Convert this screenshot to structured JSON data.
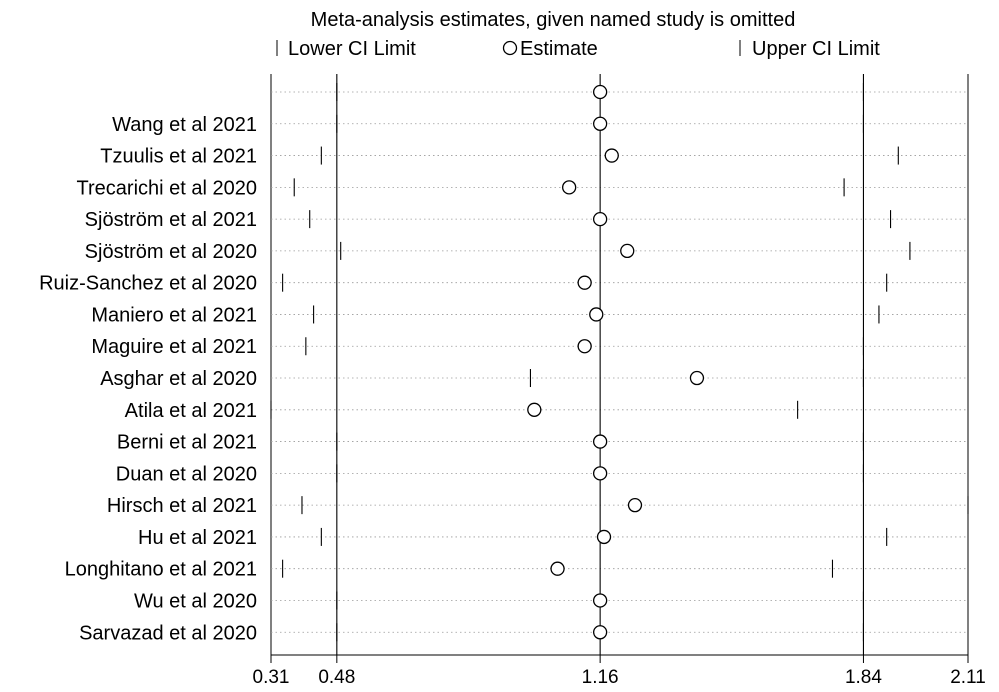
{
  "chart_data": {
    "type": "scatter",
    "title": "Meta-analysis estimates, given named study is omitted",
    "legend": {
      "placement": "top",
      "entries": [
        "Lower CI Limit",
        "Estimate",
        "Upper CI Limit"
      ]
    },
    "xlim": [
      0.31,
      2.11
    ],
    "xticks": [
      "0.31",
      "0.48",
      "1.16",
      "1.84",
      "2.11"
    ],
    "reference_lines": [
      0.48,
      1.16,
      1.84
    ],
    "grid": "dotted horizontal row guides",
    "studies": [
      {
        "label": "",
        "lower": 0.48,
        "estimate": 1.16,
        "upper": 1.84
      },
      {
        "label": "Wang et al 2021",
        "lower": 0.48,
        "estimate": 1.16,
        "upper": 1.84
      },
      {
        "label": "Tzuulis et al 2021",
        "lower": 0.44,
        "estimate": 1.19,
        "upper": 1.93
      },
      {
        "label": "Trecarichi et al 2020",
        "lower": 0.37,
        "estimate": 1.08,
        "upper": 1.79
      },
      {
        "label": "Sjöström et al 2021",
        "lower": 0.41,
        "estimate": 1.16,
        "upper": 1.91
      },
      {
        "label": "Sjöström et al 2020",
        "lower": 0.49,
        "estimate": 1.23,
        "upper": 1.96
      },
      {
        "label": "Ruiz-Sanchez et al 2020",
        "lower": 0.34,
        "estimate": 1.12,
        "upper": 1.9
      },
      {
        "label": "Maniero et al 2021",
        "lower": 0.42,
        "estimate": 1.15,
        "upper": 1.88
      },
      {
        "label": "Maguire et al 2021",
        "lower": 0.4,
        "estimate": 1.12,
        "upper": 1.84
      },
      {
        "label": "Asghar et al 2020",
        "lower": 0.98,
        "estimate": 1.41,
        "upper": 1.84
      },
      {
        "label": "Atila et al 2021",
        "lower": 0.31,
        "estimate": 0.99,
        "upper": 1.67
      },
      {
        "label": "Berni et al 2021",
        "lower": 0.48,
        "estimate": 1.16,
        "upper": 1.84
      },
      {
        "label": "Duan et al 2020",
        "lower": 0.48,
        "estimate": 1.16,
        "upper": 1.84
      },
      {
        "label": "Hirsch et al 2021",
        "lower": 0.39,
        "estimate": 1.25,
        "upper": 2.11
      },
      {
        "label": "Hu et al 2021",
        "lower": 0.44,
        "estimate": 1.17,
        "upper": 1.9
      },
      {
        "label": "Longhitano et al 2021",
        "lower": 0.34,
        "estimate": 1.05,
        "upper": 1.76
      },
      {
        "label": "Wu et al 2020",
        "lower": 0.48,
        "estimate": 1.16,
        "upper": 1.84
      },
      {
        "label": "Sarvazad et al 2020",
        "lower": 0.48,
        "estimate": 1.16,
        "upper": 1.84
      }
    ]
  }
}
